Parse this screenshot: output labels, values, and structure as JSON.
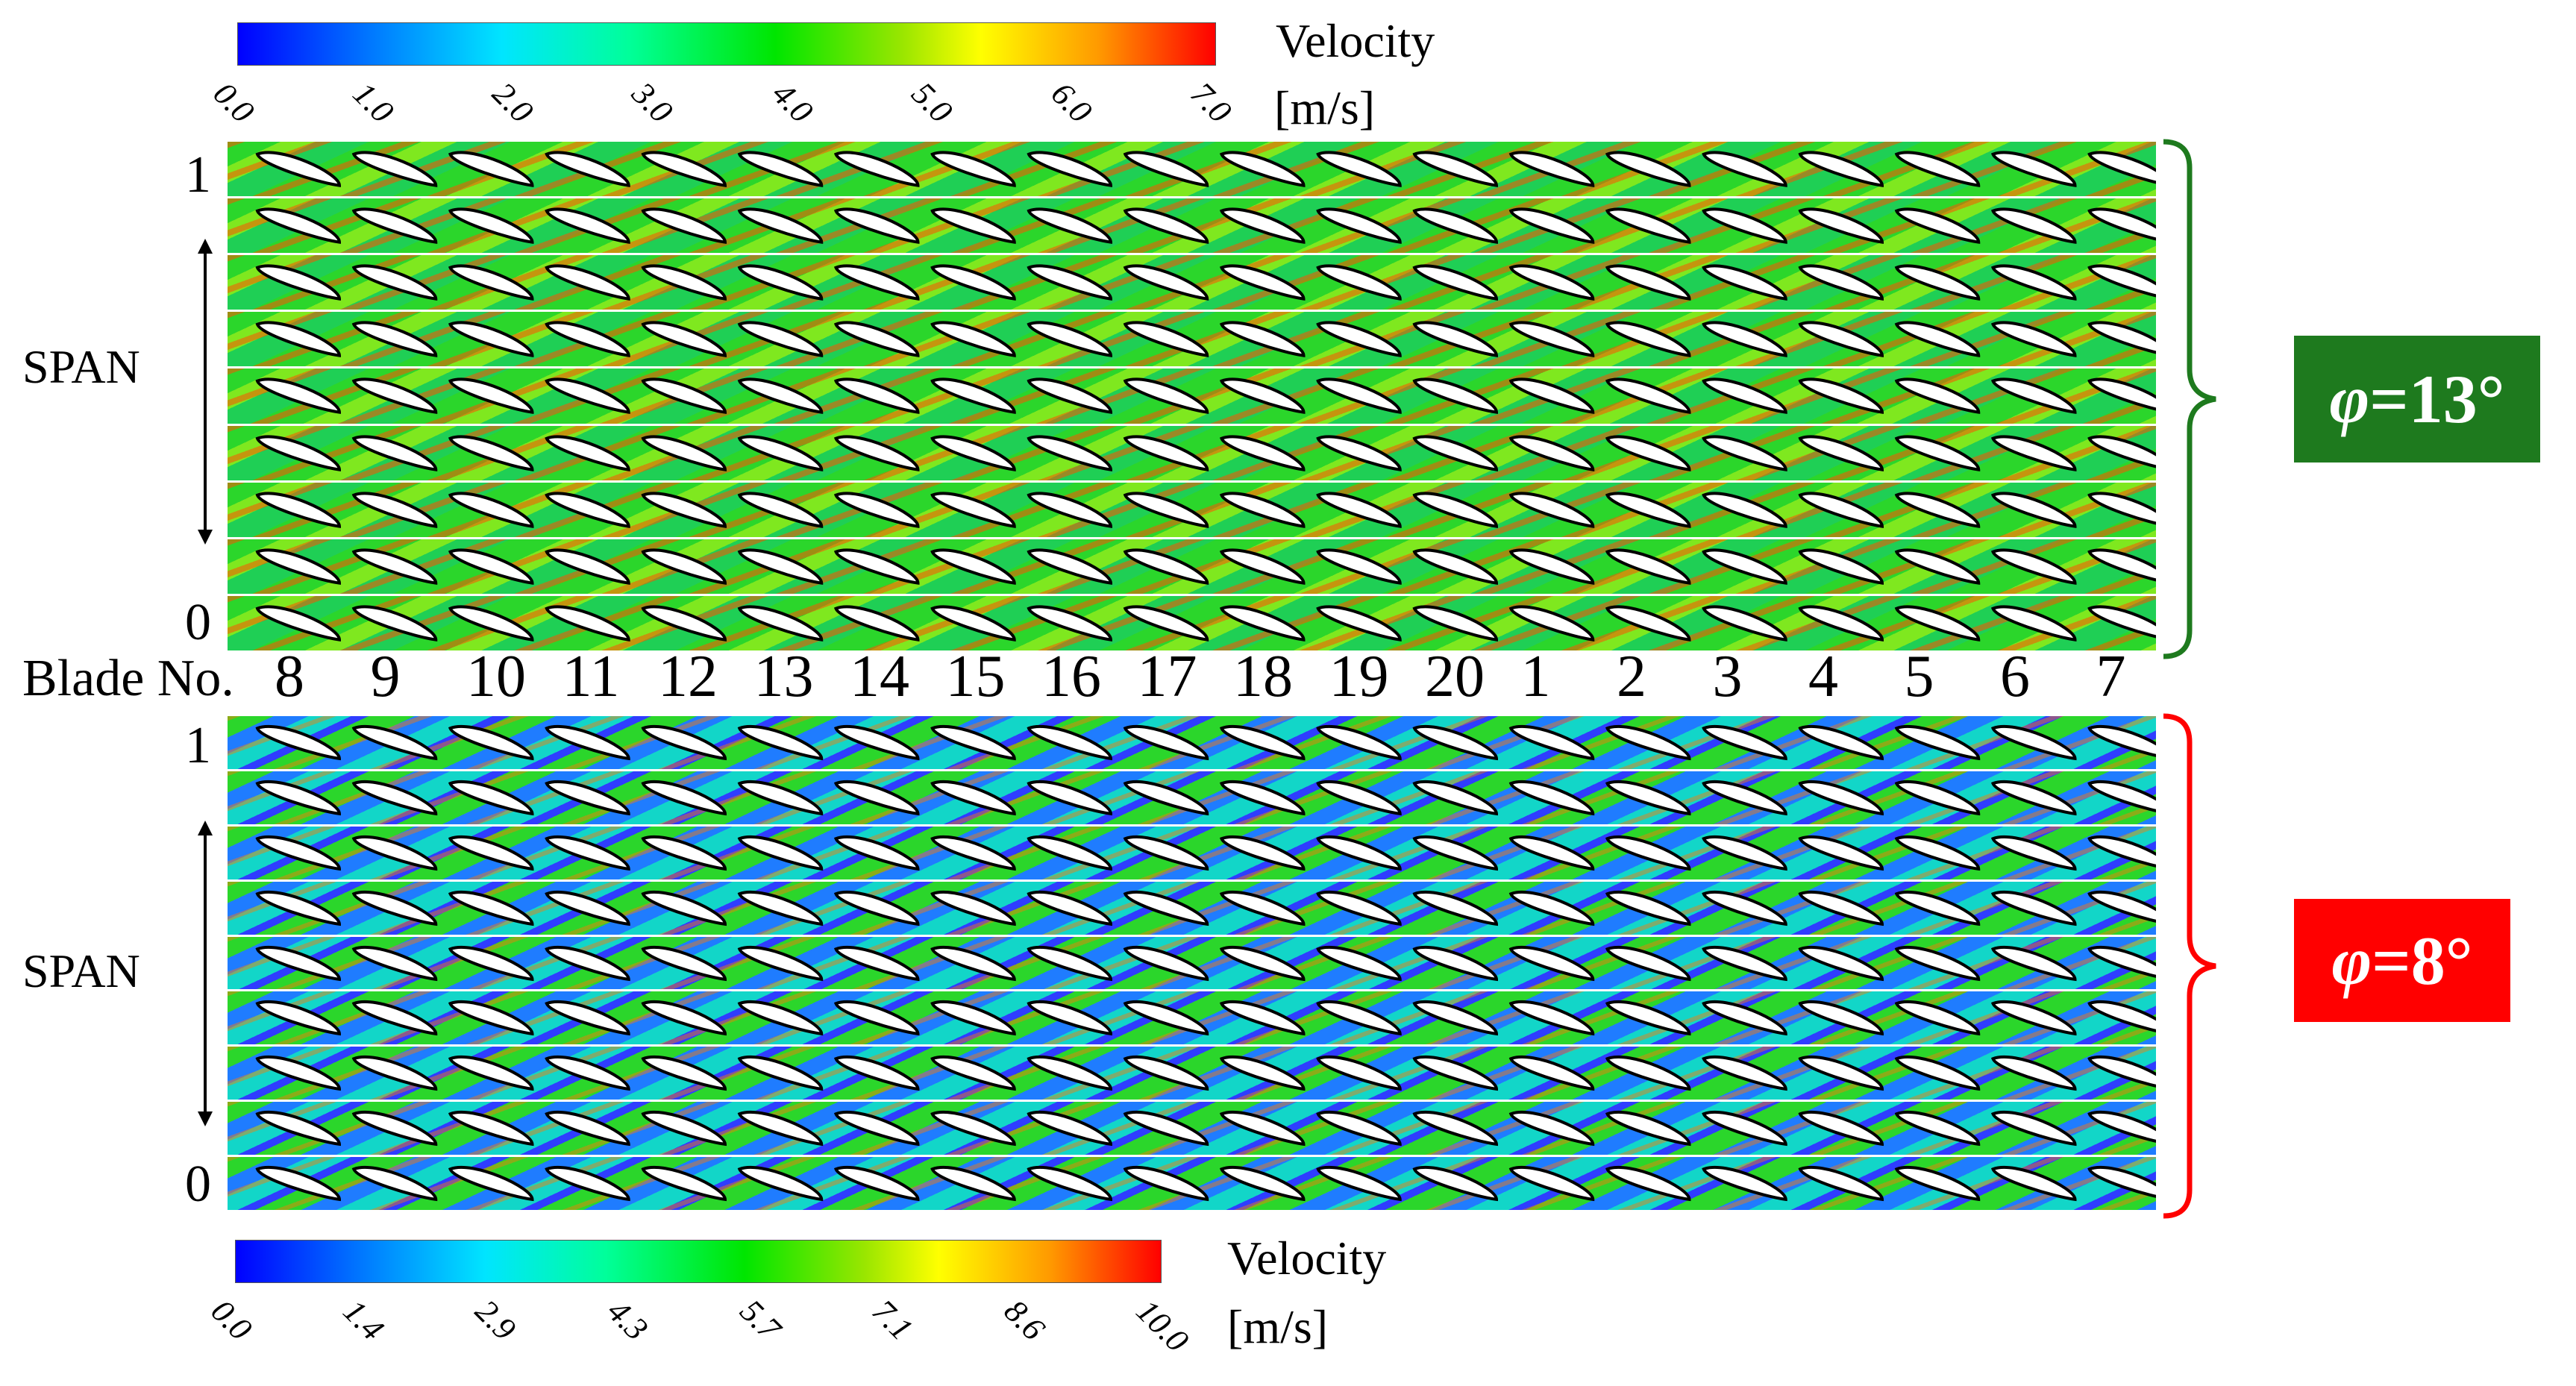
{
  "colorbar_top": {
    "title": "Velocity",
    "unit": "[m/s]",
    "ticks": [
      "0.0",
      "1.0",
      "2.0",
      "3.0",
      "4.0",
      "5.0",
      "6.0",
      "7.0"
    ]
  },
  "colorbar_bottom": {
    "title": "Velocity",
    "unit": "[m/s]",
    "ticks": [
      "0.0",
      "1.4",
      "2.9",
      "4.3",
      "5.7",
      "7.1",
      "8.6",
      "10.0"
    ]
  },
  "top_panel": {
    "span_label": "SPAN",
    "span_top": "1",
    "span_bottom": "0",
    "condition": "=13°",
    "phi": "φ",
    "color": "#1e7a1e"
  },
  "bottom_panel": {
    "span_label": "SPAN",
    "span_top": "1",
    "span_bottom": "0",
    "condition": "=8°",
    "phi": "φ",
    "color": "#ff0000"
  },
  "blade_axis": {
    "label": "Blade No.",
    "numbers": [
      "8",
      "9",
      "10",
      "11",
      "12",
      "13",
      "14",
      "15",
      "16",
      "17",
      "18",
      "19",
      "20",
      "1",
      "2",
      "3",
      "4",
      "5",
      "6",
      "7"
    ]
  },
  "layer_count": 9,
  "blade_count": 20
}
